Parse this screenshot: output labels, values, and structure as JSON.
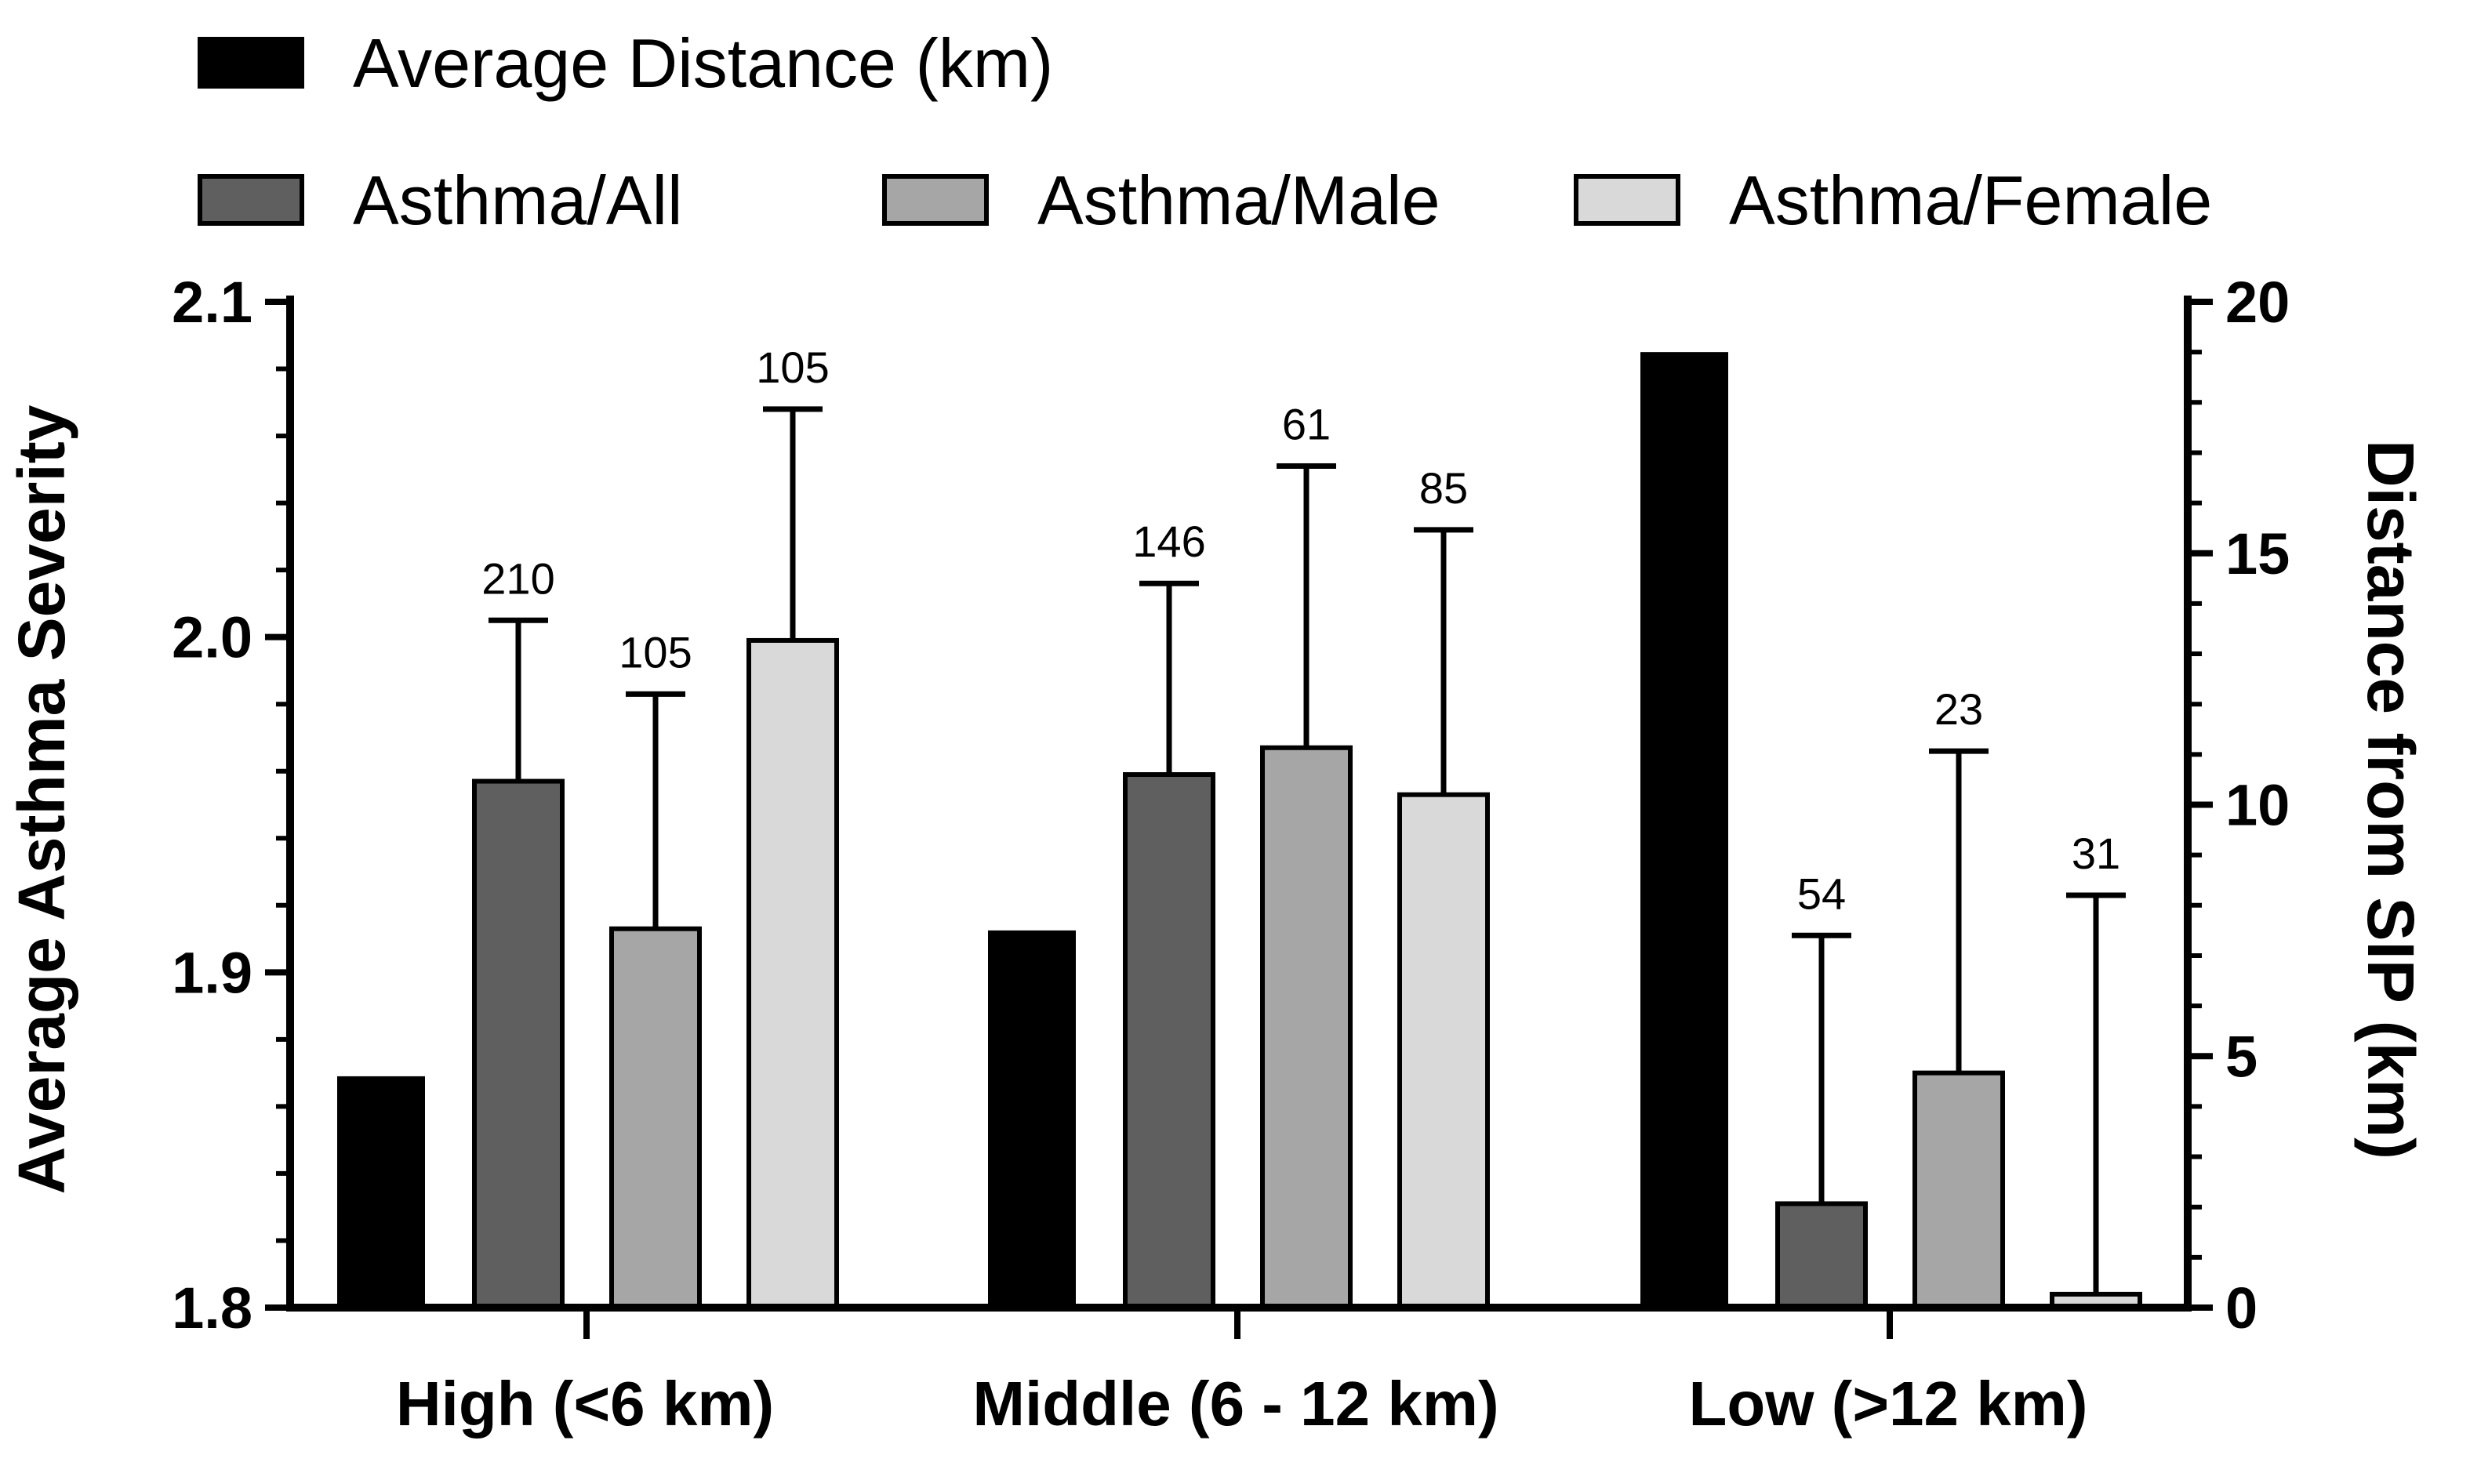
{
  "chart_data": {
    "type": "bar",
    "categories": [
      "High (<6 km)",
      "Middle (6 - 12 km)",
      "Low (>12 km)"
    ],
    "legend_rows": [
      [
        "Average Distance (km)"
      ],
      [
        "Asthma/All",
        "Asthma/Male",
        "Asthma/Female"
      ]
    ],
    "series": [
      {
        "name": "Average Distance (km)",
        "axis": "right",
        "color": "#000000",
        "values": [
          4.6,
          7.5,
          19.0
        ],
        "errors": [
          null,
          null,
          null
        ],
        "n": [
          null,
          null,
          null
        ]
      },
      {
        "name": "Asthma/All",
        "axis": "left",
        "color": "#5f5f5f",
        "values": [
          1.957,
          1.959,
          1.831
        ],
        "errors": [
          0.048,
          0.057,
          0.08
        ],
        "n": [
          "210",
          "146",
          "54"
        ]
      },
      {
        "name": "Asthma/Male",
        "axis": "left",
        "color": "#a6a6a6",
        "values": [
          1.913,
          1.967,
          1.87
        ],
        "errors": [
          0.07,
          0.084,
          0.096
        ],
        "n": [
          "105",
          "61",
          "23"
        ]
      },
      {
        "name": "Asthma/Female",
        "axis": "left",
        "color": "#d9d9d9",
        "values": [
          1.999,
          1.953,
          1.804
        ],
        "errors": [
          0.069,
          0.079,
          0.119
        ],
        "n": [
          "105",
          "85",
          "31"
        ]
      }
    ],
    "y_left": {
      "label": "Average Asthma Severity",
      "ylim": [
        1.8,
        2.1
      ],
      "ticks": [
        "1.8",
        "1.9",
        "2.0",
        "2.1"
      ]
    },
    "y_right": {
      "label": "Distance from SIP (km)",
      "ylim": [
        0,
        20
      ],
      "ticks": [
        "0",
        "5",
        "10",
        "15",
        "20"
      ]
    },
    "grid": false,
    "legend_position": "top"
  }
}
